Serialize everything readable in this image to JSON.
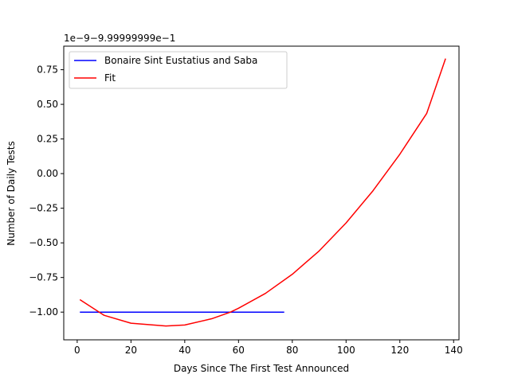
{
  "chart_data": {
    "type": "line",
    "title": "",
    "xlabel": "Days Since The First Test Announced",
    "ylabel": "Number of Daily Tests",
    "y_offset_label": "1e−9−9.99999999e−1",
    "xlim": [
      -5,
      142
    ],
    "ylim": [
      -1.2,
      0.92
    ],
    "x_ticks": [
      0,
      20,
      40,
      60,
      80,
      100,
      120,
      140
    ],
    "x_tick_labels": [
      "0",
      "20",
      "40",
      "60",
      "80",
      "100",
      "120",
      "140"
    ],
    "y_ticks": [
      -1.0,
      -0.75,
      -0.5,
      -0.25,
      0.0,
      0.25,
      0.5,
      0.75
    ],
    "y_tick_labels": [
      "−1.00",
      "−0.75",
      "−0.50",
      "−0.25",
      "0.00",
      "0.25",
      "0.50",
      "0.75"
    ],
    "grid": false,
    "legend_position": "top-left",
    "series": [
      {
        "name": "Bonaire Sint Eustatius and Saba",
        "color": "#0000ff",
        "x": [
          1,
          77
        ],
        "y": [
          -1.0,
          -1.0
        ]
      },
      {
        "name": "Fit",
        "color": "#ff0000",
        "x": [
          1,
          10,
          20,
          33,
          40,
          50,
          57,
          60,
          70,
          80,
          90,
          100,
          110,
          120,
          130,
          137
        ],
        "y": [
          -0.91,
          -1.023,
          -1.08,
          -1.1,
          -1.093,
          -1.048,
          -1.0,
          -0.972,
          -0.865,
          -0.727,
          -0.558,
          -0.356,
          -0.124,
          0.14,
          0.435,
          0.83
        ]
      }
    ]
  }
}
